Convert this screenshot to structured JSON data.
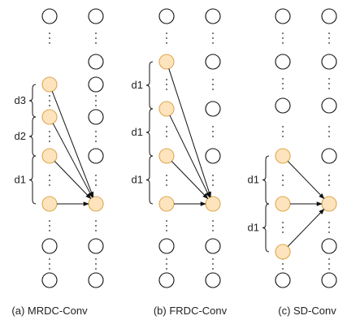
{
  "panels": [
    {
      "caption": "(a) MRDC-Conv",
      "dilation_labels": [
        "d3",
        "d2",
        "d1"
      ],
      "highlighted_nodes": 4
    },
    {
      "caption": "(b) FRDC-Conv",
      "dilation_labels": [
        "d1",
        "d1",
        "d1"
      ],
      "highlighted_nodes": 4
    },
    {
      "caption": "(c) SD-Conv",
      "dilation_labels": [
        "d1",
        "d1"
      ],
      "highlighted_nodes": 3
    }
  ],
  "colors": {
    "node_fill_highlight": "#fde4bd",
    "node_stroke_highlight": "#e0a752",
    "node_stroke": "#111111"
  }
}
